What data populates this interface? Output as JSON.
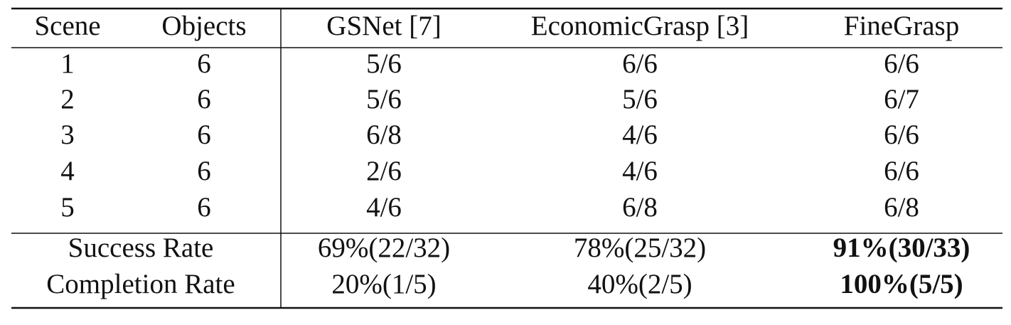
{
  "table": {
    "header": [
      "Scene",
      "Objects",
      "GSNet [7]",
      "EconomicGrasp [3]",
      "FineGrasp"
    ],
    "rows": [
      [
        "1",
        "6",
        "5/6",
        "6/6",
        "6/6"
      ],
      [
        "2",
        "6",
        "5/6",
        "5/6",
        "6/7"
      ],
      [
        "3",
        "6",
        "6/8",
        "4/6",
        "6/6"
      ],
      [
        "4",
        "6",
        "2/6",
        "4/6",
        "6/6"
      ],
      [
        "5",
        "6",
        "4/6",
        "6/8",
        "6/8"
      ]
    ],
    "summary": [
      {
        "label": "Success Rate",
        "values": [
          "69%(22/32)",
          "78%(25/32)",
          "91%(30/33)"
        ]
      },
      {
        "label": "Completion Rate",
        "values": [
          "20%(1/5)",
          "40%(2/5)",
          "100%(5/5)"
        ]
      }
    ]
  }
}
